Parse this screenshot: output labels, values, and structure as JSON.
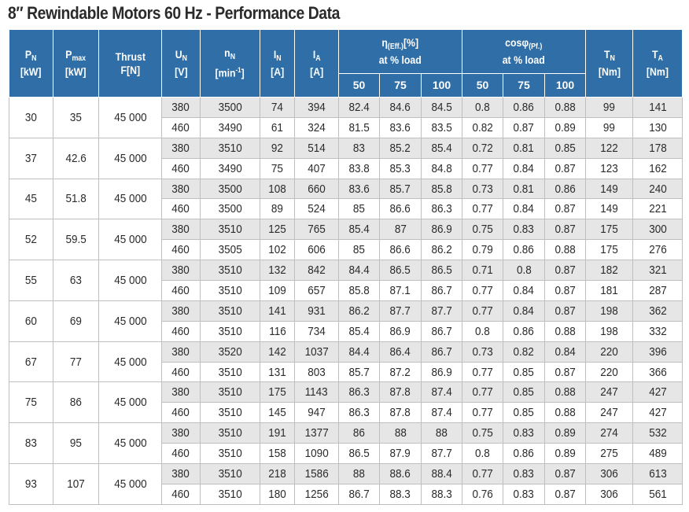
{
  "title": "8″ Rewindable Motors 60 Hz - Performance Data",
  "headers": {
    "pn": {
      "sym": "P",
      "sub": "N",
      "unit": "[kW]"
    },
    "pmax": {
      "sym": "P",
      "sub": "max",
      "unit": "[kW]"
    },
    "thrust": {
      "line1": "Thrust",
      "line2": "F[N]"
    },
    "un": {
      "sym": "U",
      "sub": "N",
      "unit": "[V]"
    },
    "nn": {
      "sym": "n",
      "sub": "N",
      "unit_pre": "[min",
      "unit_sup": "-1",
      "unit_post": "]"
    },
    "in": {
      "sym": "I",
      "sub": "N",
      "unit": "[A]"
    },
    "ia": {
      "sym": "I",
      "sub": "A",
      "unit": "[A]"
    },
    "eff": {
      "sym": "η",
      "sub": "(Eff.)",
      "unit": "[%]",
      "line2": "at % load"
    },
    "pf": {
      "sym": "cosφ",
      "sub": "(Pf.)",
      "line2": "at % load"
    },
    "tn": {
      "sym": "T",
      "sub": "N",
      "unit": "[Nm]"
    },
    "ta": {
      "sym": "T",
      "sub": "A",
      "unit": "[Nm]"
    },
    "load_levels": [
      "50",
      "75",
      "100"
    ]
  },
  "groups": [
    {
      "pn": "30",
      "pmax": "35",
      "thrust": "45 000",
      "rows": [
        [
          "380",
          "3500",
          "74",
          "394",
          "82.4",
          "84.6",
          "84.5",
          "0.8",
          "0.86",
          "0.88",
          "99",
          "141"
        ],
        [
          "460",
          "3490",
          "61",
          "324",
          "81.5",
          "83.6",
          "83.5",
          "0.82",
          "0.87",
          "0.89",
          "99",
          "130"
        ]
      ]
    },
    {
      "pn": "37",
      "pmax": "42.6",
      "thrust": "45 000",
      "rows": [
        [
          "380",
          "3510",
          "92",
          "514",
          "83",
          "85.2",
          "85.4",
          "0.72",
          "0.81",
          "0.85",
          "122",
          "178"
        ],
        [
          "460",
          "3490",
          "75",
          "407",
          "83.8",
          "85.3",
          "84.8",
          "0.77",
          "0.84",
          "0.87",
          "123",
          "162"
        ]
      ]
    },
    {
      "pn": "45",
      "pmax": "51.8",
      "thrust": "45 000",
      "rows": [
        [
          "380",
          "3500",
          "108",
          "660",
          "83.6",
          "85.7",
          "85.8",
          "0.73",
          "0.81",
          "0.86",
          "149",
          "240"
        ],
        [
          "460",
          "3500",
          "89",
          "524",
          "85",
          "86.6",
          "86.3",
          "0.77",
          "0.84",
          "0.87",
          "149",
          "221"
        ]
      ]
    },
    {
      "pn": "52",
      "pmax": "59.5",
      "thrust": "45 000",
      "rows": [
        [
          "380",
          "3510",
          "125",
          "765",
          "85.4",
          "87",
          "86.9",
          "0.75",
          "0.83",
          "0.87",
          "175",
          "300"
        ],
        [
          "460",
          "3505",
          "102",
          "606",
          "85",
          "86.6",
          "86.2",
          "0.79",
          "0.86",
          "0.88",
          "175",
          "276"
        ]
      ]
    },
    {
      "pn": "55",
      "pmax": "63",
      "thrust": "45 000",
      "rows": [
        [
          "380",
          "3510",
          "132",
          "842",
          "84.4",
          "86.5",
          "86.5",
          "0.71",
          "0.8",
          "0.87",
          "182",
          "321"
        ],
        [
          "460",
          "3510",
          "109",
          "657",
          "85.8",
          "87.1",
          "86.7",
          "0.77",
          "0.84",
          "0.87",
          "181",
          "287"
        ]
      ]
    },
    {
      "pn": "60",
      "pmax": "69",
      "thrust": "45 000",
      "rows": [
        [
          "380",
          "3510",
          "141",
          "931",
          "86.2",
          "87.7",
          "87.7",
          "0.77",
          "0.84",
          "0.87",
          "198",
          "362"
        ],
        [
          "460",
          "3510",
          "116",
          "734",
          "85.4",
          "86.9",
          "86.7",
          "0.8",
          "0.86",
          "0.88",
          "198",
          "332"
        ]
      ]
    },
    {
      "pn": "67",
      "pmax": "77",
      "thrust": "45 000",
      "rows": [
        [
          "380",
          "3520",
          "142",
          "1037",
          "84.4",
          "86.4",
          "86.7",
          "0.73",
          "0.82",
          "0.84",
          "220",
          "396"
        ],
        [
          "460",
          "3510",
          "131",
          "803",
          "85.7",
          "87.2",
          "86.9",
          "0.77",
          "0.85",
          "0.87",
          "220",
          "366"
        ]
      ]
    },
    {
      "pn": "75",
      "pmax": "86",
      "thrust": "45 000",
      "rows": [
        [
          "380",
          "3510",
          "175",
          "1143",
          "86.3",
          "87.8",
          "87.4",
          "0.77",
          "0.85",
          "0.88",
          "247",
          "427"
        ],
        [
          "460",
          "3510",
          "145",
          "947",
          "86.3",
          "87.8",
          "87.4",
          "0.77",
          "0.85",
          "0.88",
          "247",
          "427"
        ]
      ]
    },
    {
      "pn": "83",
      "pmax": "95",
      "thrust": "45 000",
      "rows": [
        [
          "380",
          "3510",
          "191",
          "1377",
          "86",
          "88",
          "88",
          "0.75",
          "0.83",
          "0.89",
          "274",
          "532"
        ],
        [
          "460",
          "3510",
          "158",
          "1090",
          "86.5",
          "87.9",
          "87.7",
          "0.8",
          "0.86",
          "0.89",
          "275",
          "489"
        ]
      ]
    },
    {
      "pn": "93",
      "pmax": "107",
      "thrust": "45 000",
      "rows": [
        [
          "380",
          "3510",
          "218",
          "1586",
          "88",
          "88.6",
          "88.4",
          "0.77",
          "0.83",
          "0.87",
          "306",
          "613"
        ],
        [
          "460",
          "3510",
          "180",
          "1256",
          "86.7",
          "88.3",
          "88.3",
          "0.76",
          "0.83",
          "0.87",
          "306",
          "561"
        ]
      ]
    }
  ]
}
